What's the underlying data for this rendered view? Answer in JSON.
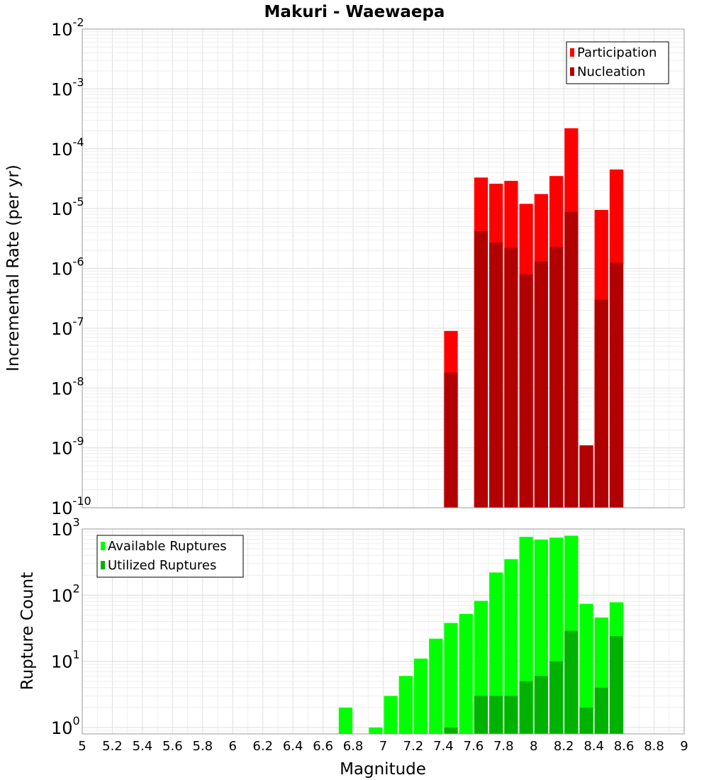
{
  "chart_data": {
    "title": "Makuri - Waewaepa",
    "xlabel": "Magnitude",
    "xlim": [
      5,
      9
    ],
    "x_ticks": [
      "5",
      "5.2",
      "5.4",
      "5.6",
      "5.8",
      "6",
      "6.2",
      "6.4",
      "6.6",
      "6.8",
      "7",
      "7.2",
      "7.4",
      "7.6",
      "7.8",
      "8",
      "8.2",
      "8.4",
      "8.6",
      "8.8",
      "9"
    ],
    "grid": true,
    "panels": [
      {
        "type": "bar",
        "ylabel": "Incremental Rate (per yr)",
        "yscale": "log",
        "ylim": [
          1e-10,
          0.01
        ],
        "y_ticks": [
          {
            "value": 1e-10,
            "base": "10",
            "exp": "-10"
          },
          {
            "value": 1e-09,
            "base": "10",
            "exp": "-9"
          },
          {
            "value": 1e-08,
            "base": "10",
            "exp": "-8"
          },
          {
            "value": 1e-07,
            "base": "10",
            "exp": "-7"
          },
          {
            "value": 1e-06,
            "base": "10",
            "exp": "-6"
          },
          {
            "value": 1e-05,
            "base": "10",
            "exp": "-5"
          },
          {
            "value": 0.0001,
            "base": "10",
            "exp": "-4"
          },
          {
            "value": 0.001,
            "base": "10",
            "exp": "-3"
          },
          {
            "value": 0.01,
            "base": "10",
            "exp": "-2"
          }
        ],
        "legend_position": "top-right",
        "x": [
          7.45,
          7.55,
          7.65,
          7.75,
          7.85,
          7.95,
          8.05,
          8.15,
          8.25,
          8.35,
          8.45,
          8.55
        ],
        "series": [
          {
            "name": "Participation",
            "color": "#ff0000",
            "values": [
              9e-08,
              null,
              3.3e-05,
              2.6e-05,
              2.9e-05,
              1.2e-05,
              1.75e-05,
              3.5e-05,
              0.00022,
              1.1e-09,
              9.5e-06,
              4.5e-05
            ]
          },
          {
            "name": "Nucleation",
            "color": "#b20000",
            "values": [
              1.8e-08,
              null,
              4.2e-06,
              2.7e-06,
              2.2e-06,
              8e-07,
              1.3e-06,
              2.3e-06,
              8.8e-06,
              1.1e-09,
              3e-07,
              1.25e-06
            ]
          }
        ]
      },
      {
        "type": "bar",
        "ylabel": "Rupture Count",
        "yscale": "log",
        "ylim": [
          0.8,
          1000
        ],
        "y_ticks": [
          {
            "value": 1,
            "base": "10",
            "exp": "0"
          },
          {
            "value": 10,
            "base": "10",
            "exp": "1"
          },
          {
            "value": 100,
            "base": "10",
            "exp": "2"
          },
          {
            "value": 1000,
            "base": "10",
            "exp": "3"
          }
        ],
        "legend_position": "top-left",
        "x": [
          6.75,
          6.85,
          6.95,
          7.05,
          7.15,
          7.25,
          7.35,
          7.45,
          7.55,
          7.65,
          7.75,
          7.85,
          7.95,
          8.05,
          8.15,
          8.25,
          8.35,
          8.45,
          8.55
        ],
        "series": [
          {
            "name": "Available Ruptures",
            "color": "#00ff00",
            "values": [
              2,
              null,
              1,
              3,
              6,
              11,
              22,
              38,
              52,
              82,
              220,
              350,
              760,
              690,
              740,
              790,
              74,
              46,
              78
            ]
          },
          {
            "name": "Utilized Ruptures",
            "color": "#00b200",
            "values": [
              null,
              null,
              null,
              null,
              null,
              null,
              null,
              1,
              null,
              3,
              3,
              3,
              5,
              6,
              10,
              29,
              2,
              4,
              24
            ]
          }
        ]
      }
    ]
  }
}
